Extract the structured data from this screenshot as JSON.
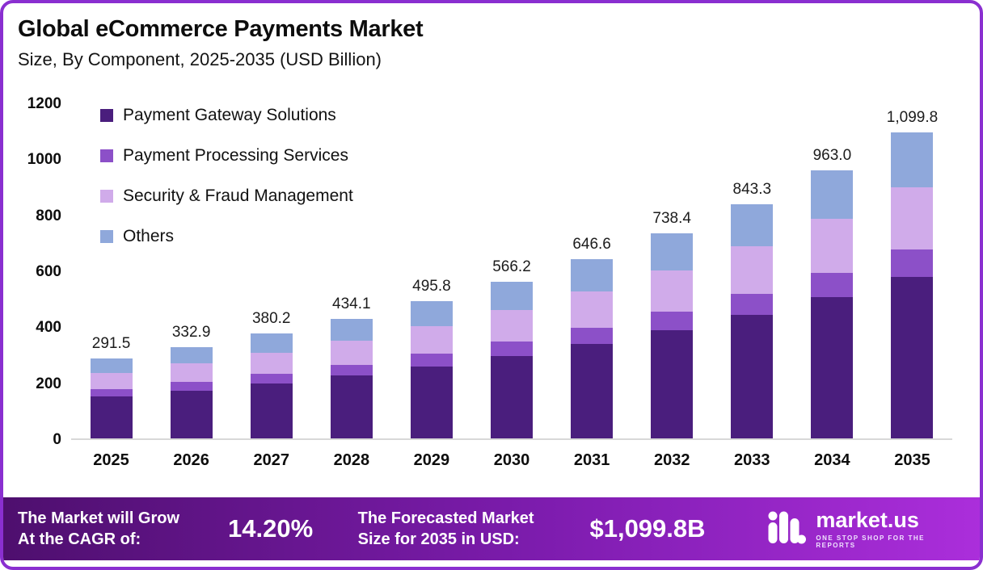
{
  "header": {
    "title": "Global eCommerce Payments Market",
    "subtitle": "Size, By Component, 2025-2035 (USD Billion)"
  },
  "chart_data": {
    "type": "bar",
    "stacked": true,
    "title": "Global eCommerce Payments Market",
    "subtitle": "Size, By Component, 2025-2035 (USD Billion)",
    "xlabel": "",
    "ylabel": "USD Billion",
    "ylim": [
      0,
      1200
    ],
    "yticks": [
      0,
      200,
      400,
      600,
      800,
      1000,
      1200
    ],
    "grid": false,
    "legend_position": "top-left",
    "categories": [
      "2025",
      "2026",
      "2027",
      "2028",
      "2029",
      "2030",
      "2031",
      "2032",
      "2033",
      "2034",
      "2035"
    ],
    "series": [
      {
        "name": "Payment Gateway Solutions",
        "color": "#4a1e7d",
        "values": [
          154.5,
          176.4,
          201.5,
          230.1,
          262.8,
          300.1,
          342.7,
          391.4,
          447.0,
          510.4,
          582.9
        ]
      },
      {
        "name": "Payment Processing Services",
        "color": "#8c50c8",
        "values": [
          26.2,
          30.0,
          34.2,
          39.1,
          44.6,
          51.0,
          58.2,
          66.5,
          75.9,
          86.7,
          99.0
        ]
      },
      {
        "name": "Security & Fraud Management",
        "color": "#d0abea",
        "values": [
          58.3,
          66.6,
          76.0,
          86.8,
          99.2,
          113.2,
          129.3,
          147.7,
          168.7,
          192.6,
          220.0
        ]
      },
      {
        "name": "Others",
        "color": "#8fa8db",
        "values": [
          52.5,
          59.9,
          68.5,
          78.1,
          89.2,
          101.9,
          116.4,
          132.8,
          151.7,
          173.3,
          197.9
        ]
      }
    ],
    "totals": [
      291.5,
      332.9,
      380.2,
      434.1,
      495.8,
      566.2,
      646.6,
      738.4,
      843.3,
      963.0,
      1099.8
    ],
    "total_labels": [
      "291.5",
      "332.9",
      "380.2",
      "434.1",
      "495.8",
      "566.2",
      "646.6",
      "738.4",
      "843.3",
      "963.0",
      "1,099.8"
    ]
  },
  "footer": {
    "cagr_label_line1": "The Market will Grow",
    "cagr_label_line2": "At the CAGR of:",
    "cagr_value": "14.20%",
    "forecast_label_line1": "The Forecasted Market",
    "forecast_label_line2": "Size for 2035 in USD:",
    "forecast_value": "$1,099.8B",
    "brand_name": "market.us",
    "brand_tagline": "ONE STOP SHOP FOR THE REPORTS"
  },
  "colors": {
    "border": "#8a2fd0",
    "footer_gradient_start": "#4e0f6e",
    "footer_gradient_end": "#ab2edb"
  }
}
